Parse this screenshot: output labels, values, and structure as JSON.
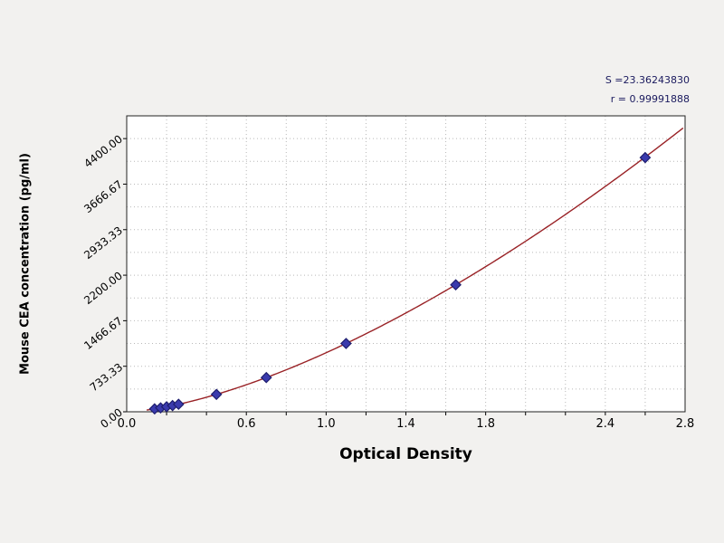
{
  "chart_data": {
    "type": "scatter",
    "xlabel": "Optical Density",
    "ylabel": "Mouse CEA concentration (pg/ml)",
    "annotations": [
      "S =23.36243830",
      "r = 0.99991888"
    ],
    "xlim": [
      0,
      2.8
    ],
    "ylim": [
      0,
      4766.67
    ],
    "grid": "dotted",
    "legend": "none",
    "x_ticks": [
      {
        "v": 0.0,
        "label": "0.0"
      },
      {
        "v": 0.6,
        "label": "0.6"
      },
      {
        "v": 1.0,
        "label": "1.0"
      },
      {
        "v": 1.4,
        "label": "1.4"
      },
      {
        "v": 1.8,
        "label": "1.8"
      },
      {
        "v": 2.4,
        "label": "2.4"
      },
      {
        "v": 2.8,
        "label": "2.8"
      }
    ],
    "x_grid_step": 0.2,
    "y_ticks": [
      {
        "v": 0,
        "label": "0.00"
      },
      {
        "v": 733.33,
        "label": "733.33"
      },
      {
        "v": 1466.67,
        "label": "1466.67"
      },
      {
        "v": 2200.0,
        "label": "2200.00"
      },
      {
        "v": 2933.33,
        "label": "2933.33"
      },
      {
        "v": 3666.67,
        "label": "3666.67"
      },
      {
        "v": 4400.0,
        "label": "4400.00"
      }
    ],
    "y_grid_minor_step": 366.665,
    "series": [
      {
        "name": "standards",
        "marker": "diamond",
        "points": [
          {
            "x": 0.14,
            "y": 47
          },
          {
            "x": 0.17,
            "y": 63
          },
          {
            "x": 0.2,
            "y": 81
          },
          {
            "x": 0.23,
            "y": 100
          },
          {
            "x": 0.26,
            "y": 121
          },
          {
            "x": 0.45,
            "y": 280
          },
          {
            "x": 0.7,
            "y": 551
          },
          {
            "x": 1.1,
            "y": 1100
          },
          {
            "x": 1.65,
            "y": 2045
          },
          {
            "x": 2.6,
            "y": 4094
          }
        ]
      }
    ],
    "curve": {
      "type": "power",
      "coef": 951,
      "exponent": 1.53,
      "x_start": 0.1,
      "x_end": 2.79
    },
    "colors": {
      "curve": "#992226",
      "marker_fill": "#3a3aad",
      "marker_stroke": "#1e1e6e",
      "grid": "#b9b9b9",
      "plot_bg": "#ffffff",
      "plot_border": "#222222",
      "page_bg": "#f2f1ef",
      "annotation_text": "#1a1a5e"
    }
  }
}
